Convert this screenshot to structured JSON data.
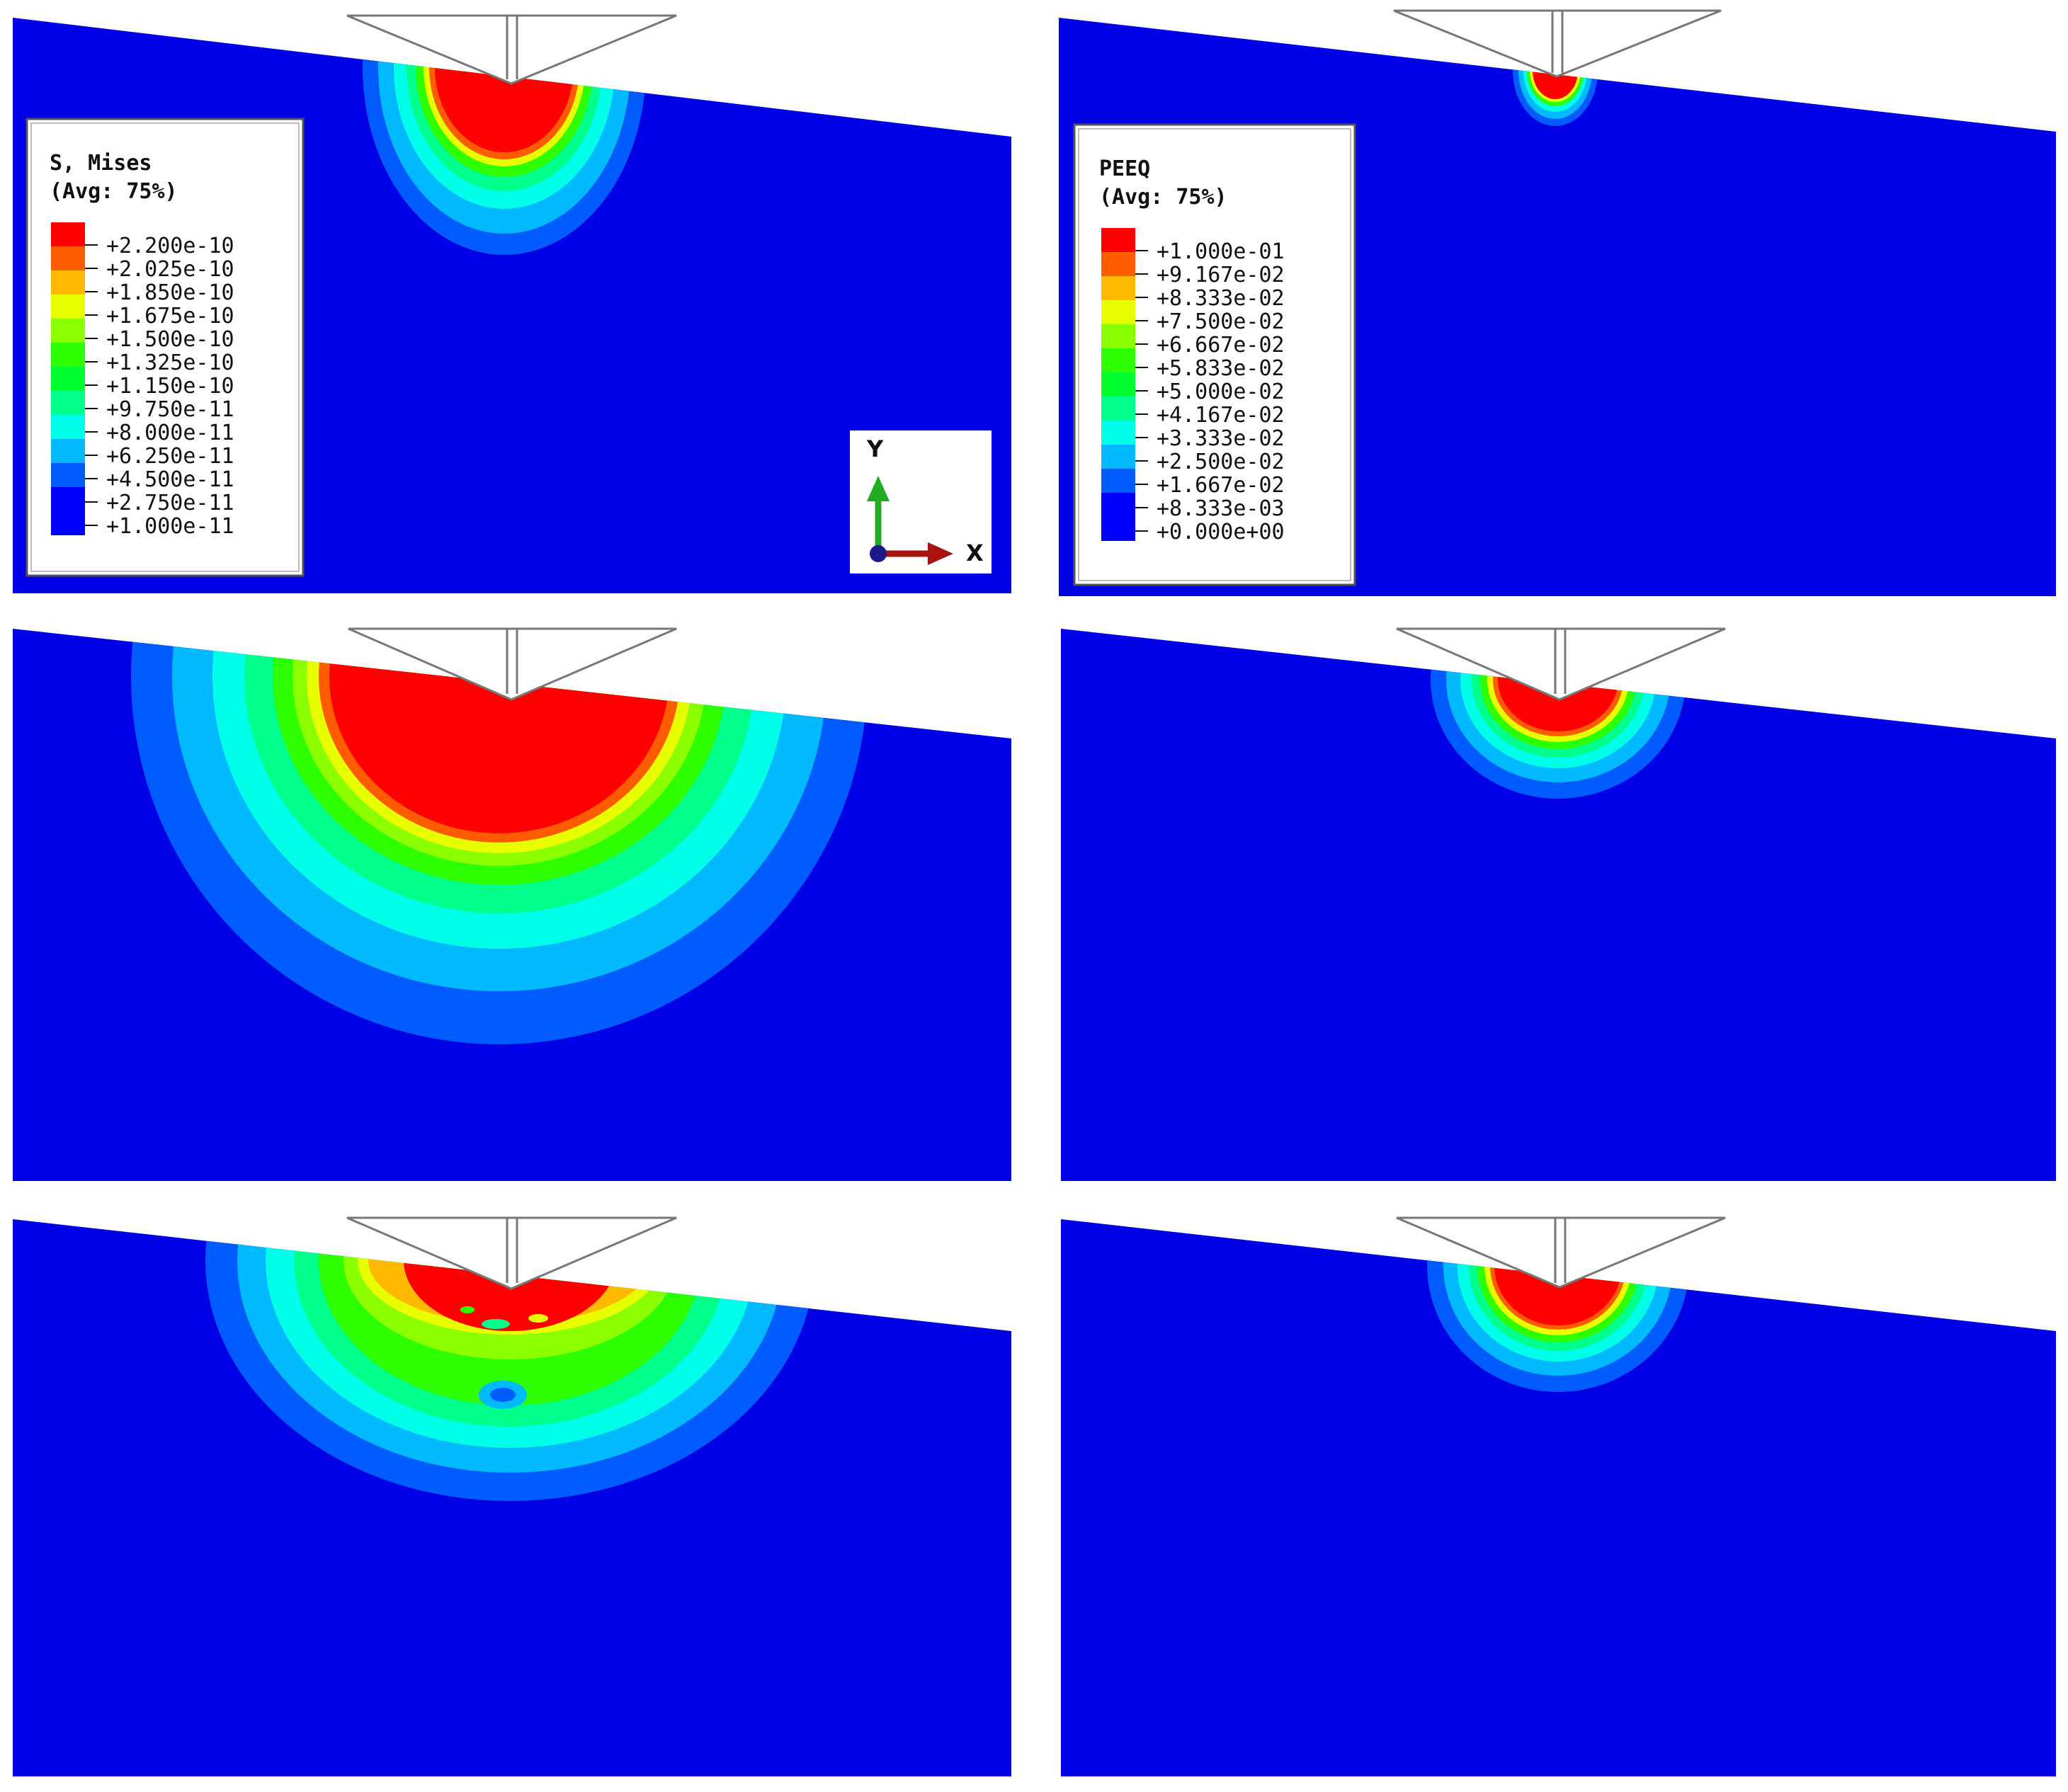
{
  "colors": {
    "background": "#0000e6",
    "indenter_fill": "#ffffff",
    "indenter_stroke": "#777777",
    "contour_scale": [
      "#0000ff",
      "#005cff",
      "#00b9ff",
      "#00ffe8",
      "#00ff8b",
      "#00ff2e",
      "#2eff00",
      "#8bff00",
      "#e8ff00",
      "#ffb900",
      "#ff5c00",
      "#ff0000"
    ]
  },
  "legend_mises": {
    "title_line1": "S, Mises",
    "title_line2": "(Avg: 75%)",
    "values": [
      "+2.200e-10",
      "+2.025e-10",
      "+1.850e-10",
      "+1.675e-10",
      "+1.500e-10",
      "+1.325e-10",
      "+1.150e-10",
      "+9.750e-11",
      "+8.000e-11",
      "+6.250e-11",
      "+4.500e-11",
      "+2.750e-11",
      "+1.000e-11"
    ]
  },
  "legend_peeq": {
    "title_line1": "PEEQ",
    "title_line2": "(Avg: 75%)",
    "values": [
      "+1.000e-01",
      "+9.167e-02",
      "+8.333e-02",
      "+7.500e-02",
      "+6.667e-02",
      "+5.833e-02",
      "+5.000e-02",
      "+4.167e-02",
      "+3.333e-02",
      "+2.500e-02",
      "+1.667e-02",
      "+8.333e-03",
      "+0.000e+00"
    ]
  },
  "triad": {
    "y_label": "Y",
    "x_label": "X"
  },
  "panels": [
    {
      "id": "mises-1",
      "field": "S, Mises",
      "extent": 0.55
    },
    {
      "id": "peeq-1",
      "field": "PEEQ",
      "extent": 0.22
    },
    {
      "id": "mises-2",
      "field": "S, Mises",
      "extent": 1.0
    },
    {
      "id": "peeq-2",
      "field": "PEEQ",
      "extent": 0.42
    },
    {
      "id": "mises-3",
      "field": "S, Mises",
      "extent": 0.8
    },
    {
      "id": "peeq-3",
      "field": "PEEQ",
      "extent": 0.45
    }
  ]
}
